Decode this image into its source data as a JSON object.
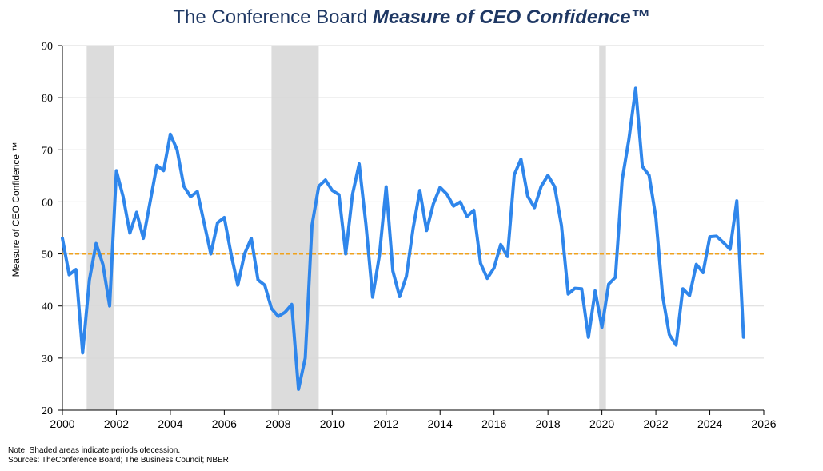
{
  "title_prefix": "The Conference Board ",
  "title_emphasis": "Measure of CEO Confidence™",
  "note": "Note: Shaded areas indicate periods ofecession.",
  "sources": "Sources: TheConference Board; The Business Council; NBER",
  "colors": {
    "line": "#2f86eb",
    "reference": "#f0a21c",
    "recession": "#dcdcdc",
    "grid": "#d9d9d9",
    "title": "#1f3864"
  },
  "chart_data": {
    "type": "line",
    "title": "The Conference Board Measure of CEO Confidence™",
    "xlabel": "",
    "ylabel": "Measure of CEO Confidence ™",
    "xlim": [
      2000,
      2026
    ],
    "ylim": [
      20,
      90
    ],
    "xticks": [
      "2000",
      "2002",
      "2004",
      "2006",
      "2008",
      "2010",
      "2012",
      "2014",
      "2016",
      "2018",
      "2020",
      "2022",
      "2024",
      "2026"
    ],
    "yticks": [
      "20",
      "30",
      "40",
      "50",
      "60",
      "70",
      "80",
      "90"
    ],
    "grid": true,
    "reference_line": 50,
    "recessions": [
      [
        2000.9,
        2001.9
      ],
      [
        2007.75,
        2009.5
      ],
      [
        2019.9,
        2020.15
      ]
    ],
    "series": [
      {
        "x": [
          2000.0,
          2000.25,
          2000.5,
          2000.75,
          2001.0,
          2001.25,
          2001.5,
          2001.75,
          2002.0,
          2002.25,
          2002.5,
          2002.75,
          2003.0,
          2003.25,
          2003.5,
          2003.75,
          2004.0,
          2004.25,
          2004.5,
          2004.75,
          2005.0,
          2005.25,
          2005.5,
          2005.75,
          2006.0,
          2006.25,
          2006.5,
          2006.75,
          2007.0,
          2007.25,
          2007.5,
          2007.75,
          2008.0,
          2008.25,
          2008.5,
          2008.75,
          2009.0,
          2009.25,
          2009.5,
          2009.75,
          2010.0,
          2010.25,
          2010.5,
          2010.75,
          2011.0,
          2011.25,
          2011.5,
          2011.75,
          2012.0,
          2012.25,
          2012.5,
          2012.75,
          2013.0,
          2013.25,
          2013.5,
          2013.75,
          2014.0,
          2014.25,
          2014.5,
          2014.75,
          2015.0,
          2015.25,
          2015.5,
          2015.75,
          2016.0,
          2016.25,
          2016.5,
          2016.75,
          2017.0,
          2017.25,
          2017.5,
          2017.75,
          2018.0,
          2018.25,
          2018.5,
          2018.75,
          2019.0,
          2019.25,
          2019.5,
          2019.75,
          2020.0,
          2020.25,
          2020.5,
          2020.75,
          2021.0,
          2021.25,
          2021.5,
          2021.75,
          2022.0,
          2022.25,
          2022.5,
          2022.75,
          2023.0,
          2023.25,
          2023.5,
          2023.75,
          2024.0,
          2024.25,
          2024.5,
          2024.75,
          2025.0,
          2025.25
        ],
        "values": [
          53,
          46,
          47,
          31,
          45,
          52,
          48,
          40,
          66,
          61,
          54,
          58,
          53,
          60,
          67,
          66,
          73,
          70,
          63,
          61,
          62,
          56,
          50,
          56,
          57,
          50,
          44,
          50,
          53,
          45,
          44,
          39.5,
          38,
          38.8,
          40.3,
          24,
          30,
          55.5,
          63,
          64.2,
          62.2,
          61.4,
          50,
          61.4,
          67.3,
          55.7,
          41.7,
          49.7,
          62.9,
          46.7,
          41.8,
          45.7,
          54.9,
          62.2,
          54.5,
          59.6,
          62.8,
          61.5,
          59.2,
          60,
          57.2,
          58.4,
          48.2,
          45.3,
          47.3,
          51.8,
          49.5,
          65.2,
          68.2,
          61.1,
          58.9,
          63,
          65.1,
          62.9,
          55.5,
          42.3,
          43.4,
          43.3,
          34,
          42.9,
          35.9,
          44.2,
          45.5,
          64.2,
          72,
          81.8,
          66.8,
          65.1,
          57,
          42,
          34.5,
          32.5,
          43.3,
          42,
          48,
          46.4,
          53.3,
          53.4,
          52.2,
          50.9,
          60.2,
          34
        ]
      }
    ]
  }
}
